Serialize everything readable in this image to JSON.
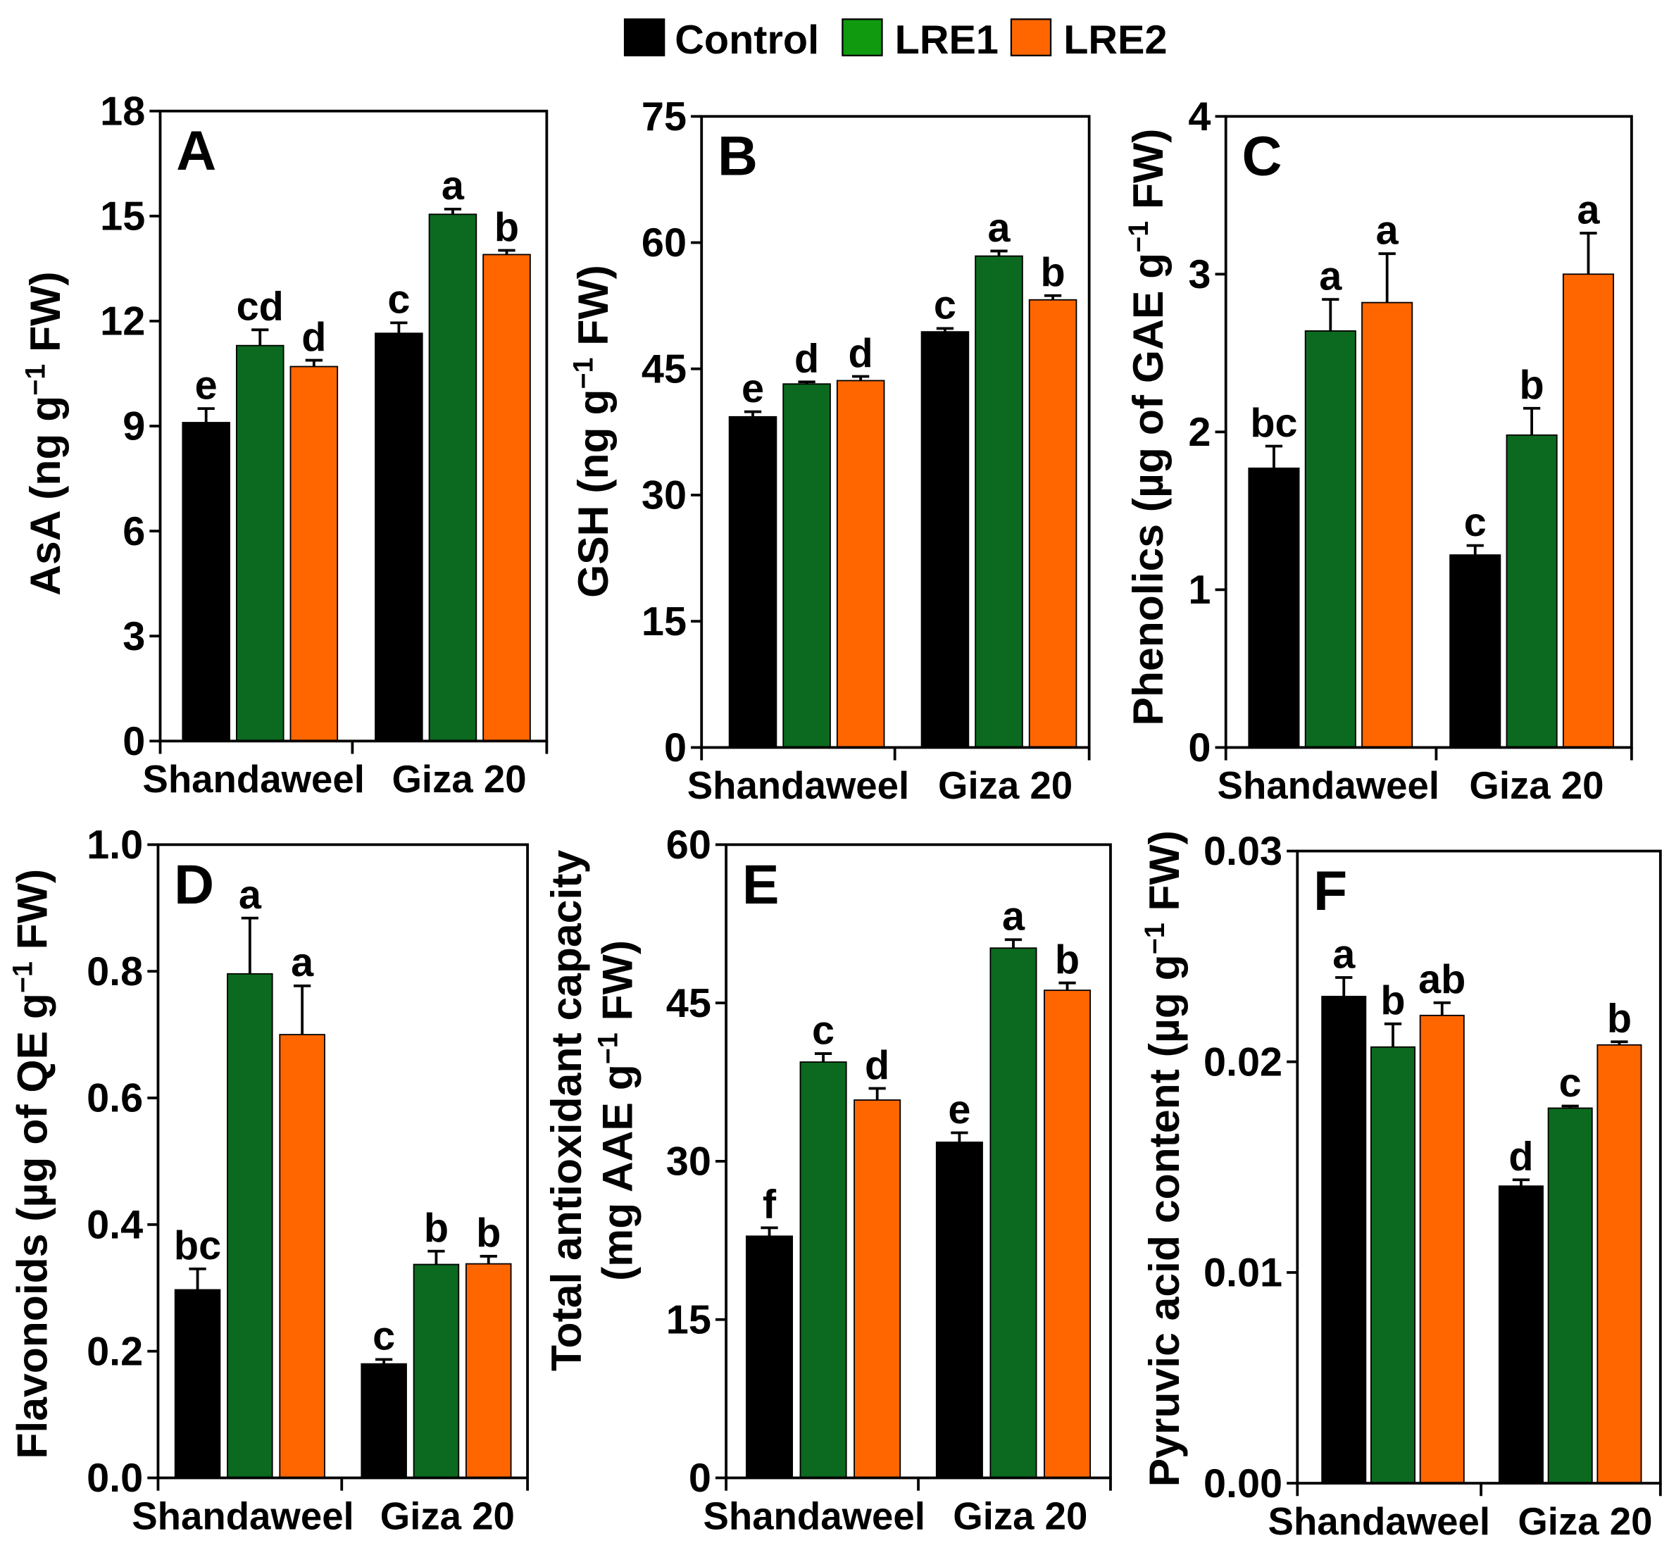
{
  "legend": [
    {
      "name": "Control",
      "color": "#000000",
      "swatch_color": "#000000"
    },
    {
      "name": "LRE1",
      "color": "#0b6a1f",
      "swatch_color": "#109a10"
    },
    {
      "name": "LRE2",
      "color": "#ff6600",
      "swatch_color": "#ff6600"
    }
  ],
  "chart_data": [
    {
      "type": "bar",
      "panel": "A",
      "ylabel": [
        {
          "pre": "AsA (ng g",
          "sup": "−1",
          "post": " FW)"
        }
      ],
      "ylim": [
        0,
        18
      ],
      "yticks": [
        "0",
        "3",
        "6",
        "9",
        "12",
        "15",
        "18"
      ],
      "categories": [
        "Shandaweel",
        "Giza 20"
      ],
      "series": [
        {
          "values": [
            9.1,
            11.65
          ],
          "errors": [
            0.4,
            0.3
          ],
          "letters": [
            "e",
            "c"
          ]
        },
        {
          "values": [
            11.3,
            15.05
          ],
          "errors": [
            0.45,
            0.15
          ],
          "letters": [
            "cd",
            "a"
          ]
        },
        {
          "values": [
            10.7,
            13.9
          ],
          "errors": [
            0.18,
            0.12
          ],
          "letters": [
            "d",
            "b"
          ]
        }
      ]
    },
    {
      "type": "bar",
      "panel": "B",
      "ylabel": [
        {
          "pre": "GSH (ng g",
          "sup": "−1",
          "post": " FW)"
        }
      ],
      "ylim": [
        0,
        75
      ],
      "yticks": [
        "0",
        "15",
        "30",
        "45",
        "60",
        "75"
      ],
      "categories": [
        "Shandaweel",
        "Giza 20"
      ],
      "series": [
        {
          "values": [
            39.3,
            49.4
          ],
          "errors": [
            0.6,
            0.4
          ],
          "letters": [
            "e",
            "c"
          ]
        },
        {
          "values": [
            43.2,
            58.4
          ],
          "errors": [
            0.25,
            0.6
          ],
          "letters": [
            "d",
            "a"
          ]
        },
        {
          "values": [
            43.6,
            53.2
          ],
          "errors": [
            0.5,
            0.5
          ],
          "letters": [
            "d",
            "b"
          ]
        }
      ]
    },
    {
      "type": "bar",
      "panel": "C",
      "ylabel": [
        {
          "pre": "Phenolics (µg of GAE g",
          "sup": "−1",
          "post": " FW)"
        }
      ],
      "ylim": [
        0,
        4
      ],
      "yticks": [
        "0",
        "1",
        "2",
        "3",
        "4"
      ],
      "categories": [
        "Shandaweel",
        "Giza 20"
      ],
      "series": [
        {
          "values": [
            1.77,
            1.22
          ],
          "errors": [
            0.14,
            0.06
          ],
          "letters": [
            "bc",
            "c"
          ]
        },
        {
          "values": [
            2.64,
            1.98
          ],
          "errors": [
            0.2,
            0.17
          ],
          "letters": [
            "a",
            "b"
          ]
        },
        {
          "values": [
            2.82,
            3.0
          ],
          "errors": [
            0.31,
            0.26
          ],
          "letters": [
            "a",
            "a"
          ]
        }
      ]
    },
    {
      "type": "bar",
      "panel": "D",
      "ylabel": [
        {
          "pre": "Flavonoids (µg of QE g",
          "sup": "−1",
          "post": " FW)"
        }
      ],
      "ylim": [
        0,
        1
      ],
      "yticks": [
        "0.0",
        "0.2",
        "0.4",
        "0.6",
        "0.8",
        "1.0"
      ],
      "categories": [
        "Shandaweel",
        "Giza 20"
      ],
      "series": [
        {
          "values": [
            0.297,
            0.18
          ],
          "errors": [
            0.033,
            0.007
          ],
          "letters": [
            "bc",
            "c"
          ]
        },
        {
          "values": [
            0.796,
            0.337
          ],
          "errors": [
            0.088,
            0.021
          ],
          "letters": [
            "a",
            "b"
          ]
        },
        {
          "values": [
            0.7,
            0.338
          ],
          "errors": [
            0.077,
            0.012
          ],
          "letters": [
            "a",
            "b"
          ]
        }
      ]
    },
    {
      "type": "bar",
      "panel": "E",
      "ylabel": [
        {
          "pre": "Total antioxidant capacity"
        },
        {
          "pre": "(mg AAE g",
          "sup": "−1",
          "post": " FW)"
        }
      ],
      "ylim": [
        0,
        60
      ],
      "yticks": [
        "0",
        "15",
        "30",
        "45",
        "60"
      ],
      "categories": [
        "Shandaweel",
        "Giza 20"
      ],
      "series": [
        {
          "values": [
            22.9,
            31.8
          ],
          "errors": [
            0.8,
            0.9
          ],
          "letters": [
            "f",
            "e"
          ]
        },
        {
          "values": [
            39.4,
            50.2
          ],
          "errors": [
            0.8,
            0.8
          ],
          "letters": [
            "c",
            "a"
          ]
        },
        {
          "values": [
            35.8,
            46.2
          ],
          "errors": [
            1.1,
            0.7
          ],
          "letters": [
            "d",
            "b"
          ]
        }
      ]
    },
    {
      "type": "bar",
      "panel": "F",
      "ylabel": [
        {
          "pre": "Pyruvic acid content (µg g",
          "sup": "−1",
          "post": " FW)"
        }
      ],
      "ylim": [
        0,
        0.03
      ],
      "yticks": [
        "0.00",
        "0.01",
        "0.02",
        "0.03"
      ],
      "categories": [
        "Shandaweel",
        "Giza 20"
      ],
      "series": [
        {
          "values": [
            0.0231,
            0.0141
          ],
          "errors": [
            0.0009,
            0.0003
          ],
          "letters": [
            "a",
            "d"
          ]
        },
        {
          "values": [
            0.0207,
            0.0178
          ],
          "errors": [
            0.0011,
            0.0001
          ],
          "letters": [
            "b",
            "c"
          ]
        },
        {
          "values": [
            0.0222,
            0.0208
          ],
          "errors": [
            0.0006,
            0.00015
          ],
          "letters": [
            "ab",
            "b"
          ]
        }
      ]
    }
  ]
}
